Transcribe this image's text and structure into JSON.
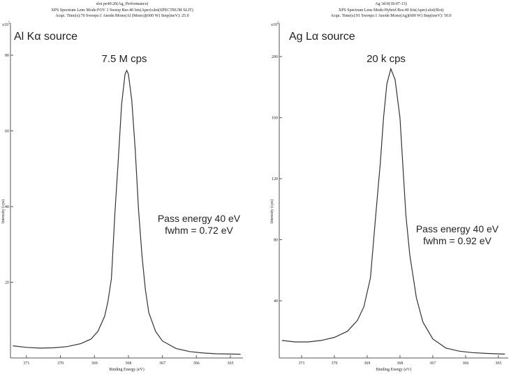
{
  "chart_data": [
    {
      "type": "line",
      "title": "slot pe40:20(Ag_Performance)",
      "subtitles": [
        "XPS  Spectrum   Lens Mode:FOV 1 Sweep  Res:40  Iris(Aper):slot(SPECTRUM SLIT)",
        "Acqn. Time(s):70    Sweeps:1    Anode:Mono(Al (Mono))(600 W)  Step(meV): 25.0"
      ],
      "x_label": "Binding Energy (eV)",
      "y_label": "Intensity (cps)",
      "y_scale_base": "x10",
      "y_scale_exponent": "5",
      "annotations": [
        "Al Kα source",
        "7.5 M cps",
        "Pass energy 40 eV",
        "fwhm  = 0.72 eV"
      ],
      "color": "#333333",
      "x": [
        371.4,
        371.0,
        370.6,
        370.2,
        369.8,
        369.4,
        369.1,
        368.9,
        368.7,
        368.6,
        368.5,
        368.4,
        368.3,
        368.2,
        368.1,
        368.05,
        368.0,
        367.9,
        367.8,
        367.7,
        367.6,
        367.5,
        367.4,
        367.2,
        367.0,
        366.6,
        366.2,
        365.8,
        365.4,
        364.7
      ],
      "values": [
        3.2,
        2.8,
        2.6,
        2.7,
        3.0,
        3.8,
        5.0,
        7.0,
        11,
        15,
        21,
        38,
        52,
        67,
        75,
        76,
        75,
        68,
        55,
        39,
        27,
        18,
        12,
        7,
        4.5,
        2.5,
        1.7,
        1.3,
        1.1,
        1.0
      ],
      "xlim": [
        371.47,
        364.63
      ],
      "xticks": [
        371,
        370,
        369,
        368,
        367,
        366,
        365
      ],
      "ylim": [
        0,
        88.5
      ],
      "yticks": [
        20,
        40,
        60,
        80
      ]
    },
    {
      "type": "line",
      "title": "Ag 3d:0(18-07-13)",
      "subtitles": [
        "XPS  Spectrum   Lens Mode:Hybrid  Res:40  Iris(Aper):slot(Slot)",
        "Acqn. Time(s):91    Sweeps:1    Anode:Mono(Ag)(600 W)  Step(meV): 50.0"
      ],
      "x_label": "Binding Energy (eV)",
      "y_label": "Intensity (cps)",
      "y_scale_base": "x10",
      "y_scale_exponent": "2",
      "annotations": [
        "Ag Lα source",
        "20 k cps",
        "Pass energy 40 eV",
        "fwhm  = 0.92 eV"
      ],
      "color": "#333333",
      "x": [
        371.6,
        371.2,
        370.8,
        370.4,
        370.0,
        369.6,
        369.3,
        369.1,
        368.9,
        368.74,
        368.6,
        368.5,
        368.4,
        368.28,
        368.15,
        368.0,
        367.82,
        367.7,
        367.5,
        367.3,
        367.0,
        366.6,
        366.2,
        365.8,
        365.4,
        364.8
      ],
      "values": [
        14,
        13,
        13,
        14,
        16,
        20,
        27,
        36,
        55,
        96,
        130,
        160,
        182,
        192,
        185,
        160,
        96,
        70,
        42,
        26,
        15,
        9,
        7,
        6,
        5.5,
        5
      ],
      "xlim": [
        371.68,
        364.7
      ],
      "xticks": [
        371,
        370,
        369,
        368,
        367,
        366,
        365
      ],
      "ylim": [
        2.5,
        222
      ],
      "yticks": [
        40,
        80,
        120,
        160,
        200
      ]
    }
  ]
}
